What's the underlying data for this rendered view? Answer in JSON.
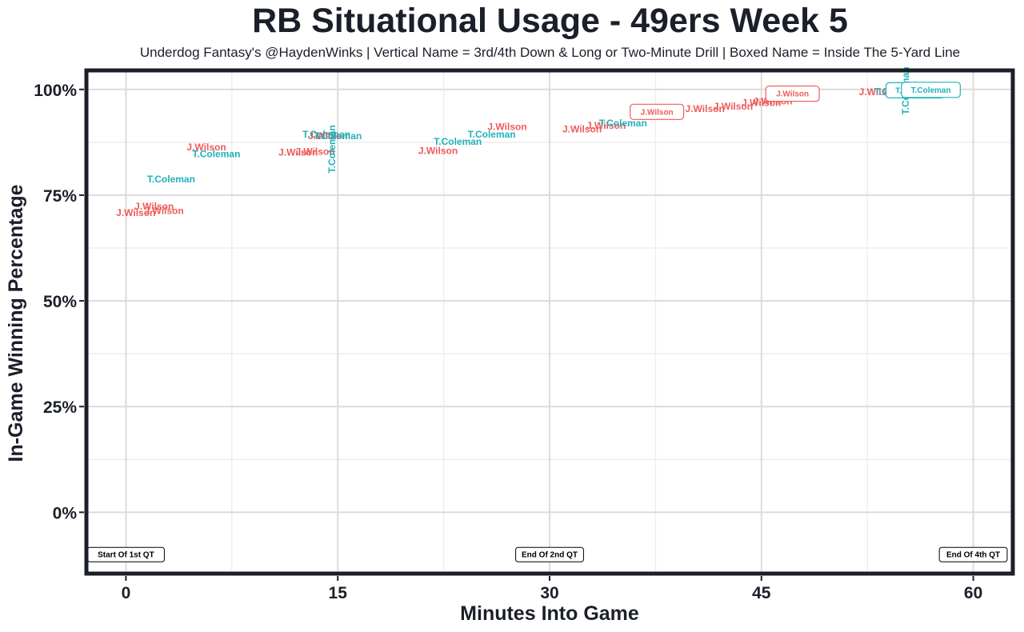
{
  "title": "RB Situational Usage - 49ers Week 5",
  "subtitle": "Underdog Fantasy's @HaydenWinks | Vertical Name = 3rd/4th Down & Long or Two-Minute Drill | Boxed Name = Inside The 5-Yard Line",
  "colors": {
    "J.Wilson": "#ef5a5a",
    "T.Coleman": "#1fb2b9",
    "frame": "#1b1f2a",
    "grid_major": "#dcdcdc",
    "grid_minor": "#eeeeee"
  },
  "chart_data": {
    "type": "scatter",
    "xlabel": "Minutes Into Game",
    "ylabel": "In-Game Winning Percentage",
    "xlim": [
      -2.8,
      62.8
    ],
    "ylim": [
      -14.5,
      104.5
    ],
    "x_ticks": [
      {
        "value": 0,
        "label": "0"
      },
      {
        "value": 15,
        "label": "15"
      },
      {
        "value": 30,
        "label": "30"
      },
      {
        "value": 45,
        "label": "45"
      },
      {
        "value": 60,
        "label": "60"
      }
    ],
    "y_ticks": [
      {
        "value": 0,
        "label": "0%"
      },
      {
        "value": 25,
        "label": "25%"
      },
      {
        "value": 50,
        "label": "50%"
      },
      {
        "value": 75,
        "label": "75%"
      },
      {
        "value": 100,
        "label": "100%"
      }
    ],
    "grid": true,
    "quarter_markers": [
      {
        "x": 0,
        "label": "Start Of 1st QT"
      },
      {
        "x": 30,
        "label": "End Of 2nd QT"
      },
      {
        "x": 60,
        "label": "End Of 4th QT"
      }
    ],
    "quarter_marker_y": -10,
    "points": [
      {
        "x": 0.7,
        "y": 70.8,
        "player": "J.Wilson",
        "style": "plain"
      },
      {
        "x": 2.0,
        "y": 72.3,
        "player": "J.Wilson",
        "style": "plain"
      },
      {
        "x": 2.7,
        "y": 71.3,
        "player": "J.Wilson",
        "style": "plain"
      },
      {
        "x": 3.2,
        "y": 78.8,
        "player": "T.Coleman",
        "style": "plain"
      },
      {
        "x": 5.7,
        "y": 86.3,
        "player": "J.Wilson",
        "style": "plain"
      },
      {
        "x": 6.4,
        "y": 84.7,
        "player": "T.Coleman",
        "style": "plain"
      },
      {
        "x": 12.2,
        "y": 85.1,
        "player": "J.Wilson",
        "style": "plain"
      },
      {
        "x": 13.4,
        "y": 85.3,
        "player": "J.Wilson",
        "style": "plain"
      },
      {
        "x": 14.2,
        "y": 89.4,
        "player": "T.Coleman",
        "style": "plain"
      },
      {
        "x": 14.3,
        "y": 89.0,
        "player": "J.Wilson",
        "style": "plain"
      },
      {
        "x": 14.6,
        "y": 85.9,
        "player": "T.Coleman",
        "style": "vertical"
      },
      {
        "x": 15.0,
        "y": 89.0,
        "player": "T.Coleman",
        "style": "plain"
      },
      {
        "x": 22.1,
        "y": 85.5,
        "player": "J.Wilson",
        "style": "plain"
      },
      {
        "x": 23.5,
        "y": 87.7,
        "player": "T.Coleman",
        "style": "plain"
      },
      {
        "x": 25.9,
        "y": 89.4,
        "player": "T.Coleman",
        "style": "plain"
      },
      {
        "x": 27.0,
        "y": 91.2,
        "player": "J.Wilson",
        "style": "plain"
      },
      {
        "x": 32.3,
        "y": 90.6,
        "player": "J.Wilson",
        "style": "plain"
      },
      {
        "x": 34.0,
        "y": 91.4,
        "player": "J.Wilson",
        "style": "plain"
      },
      {
        "x": 35.2,
        "y": 92.0,
        "player": "T.Coleman",
        "style": "plain"
      },
      {
        "x": 37.6,
        "y": 94.7,
        "player": "J.Wilson",
        "style": "boxed"
      },
      {
        "x": 41.0,
        "y": 95.4,
        "player": "J.Wilson",
        "style": "plain"
      },
      {
        "x": 43.0,
        "y": 96.0,
        "player": "J.Wilson",
        "style": "plain"
      },
      {
        "x": 45.0,
        "y": 96.8,
        "player": "J.Wilson",
        "style": "plain"
      },
      {
        "x": 45.8,
        "y": 97.2,
        "player": "J.Wilson",
        "style": "plain"
      },
      {
        "x": 47.2,
        "y": 99.0,
        "player": "J.Wilson",
        "style": "boxed"
      },
      {
        "x": 53.3,
        "y": 99.4,
        "player": "J.Wilson",
        "style": "plain"
      },
      {
        "x": 54.7,
        "y": 99.5,
        "player": "T.Coleman",
        "style": "plain"
      },
      {
        "x": 55.9,
        "y": 99.8,
        "player": "T.Coleman",
        "style": "boxed"
      },
      {
        "x": 55.2,
        "y": 99.7,
        "player": "T.Coleman",
        "style": "vertical"
      },
      {
        "x": 57.0,
        "y": 99.9,
        "player": "T.Coleman",
        "style": "boxed"
      }
    ]
  }
}
